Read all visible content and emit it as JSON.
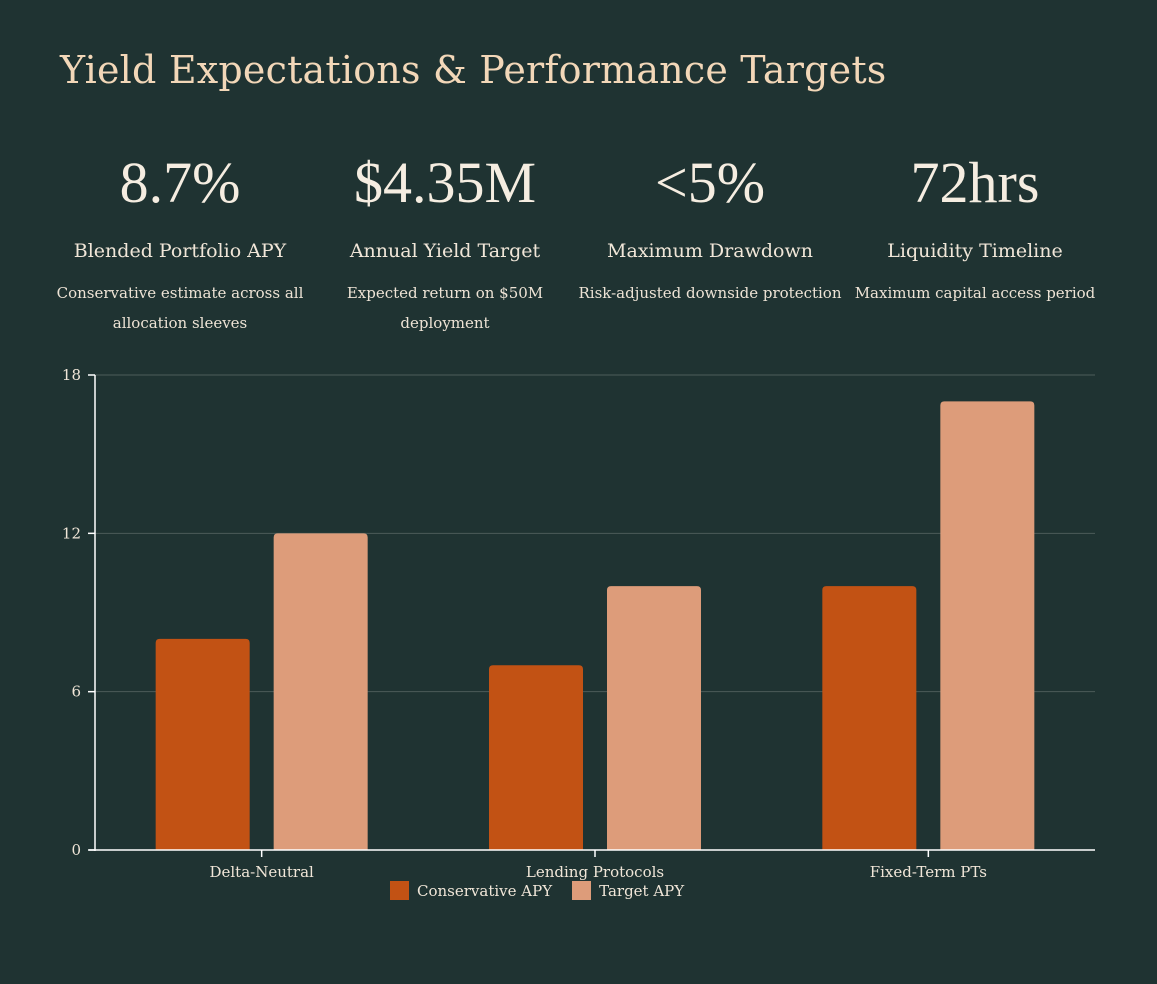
{
  "page": {
    "title": "Yield Expectations & Performance Targets"
  },
  "kpis": [
    {
      "value": "8.7%",
      "label": "Blended Portfolio APY",
      "description": "Conservative estimate across all allocation sleeves"
    },
    {
      "value": "$4.35M",
      "label": "Annual Yield Target",
      "description": "Expected return on $50M deployment"
    },
    {
      "value": "<5%",
      "label": "Maximum Drawdown",
      "description": "Risk-adjusted downside protection"
    },
    {
      "value": "72hrs",
      "label": "Liquidity Timeline",
      "description": "Maximum capital access period"
    }
  ],
  "colors": {
    "background": "#1f3332",
    "title": "#f2d7b8",
    "conservative": "#c25214",
    "target": "#dd9c7a",
    "grid": "#4c5c5a",
    "axis": "#ffffff"
  },
  "chart_data": {
    "type": "bar",
    "categories": [
      "Delta-Neutral",
      "Lending Protocols",
      "Fixed-Term PTs"
    ],
    "series": [
      {
        "name": "Conservative APY",
        "values": [
          8,
          7,
          10
        ]
      },
      {
        "name": "Target APY",
        "values": [
          12,
          10,
          17
        ]
      }
    ],
    "yticks": [
      0,
      6,
      12,
      18
    ],
    "ylim": [
      0,
      18
    ],
    "grid": true,
    "legend": "bottom-center",
    "title": "",
    "xlabel": "",
    "ylabel": ""
  }
}
